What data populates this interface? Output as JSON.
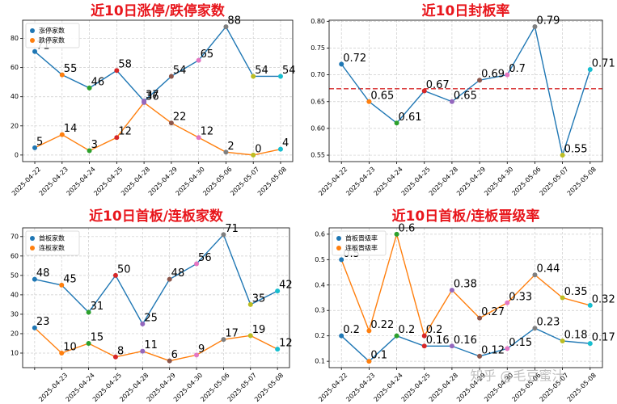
{
  "chart_data": [
    {
      "type": "line",
      "title": "近10日涨停/跌停家数",
      "categories": [
        "2025-04-22",
        "2025-04-23",
        "2025-04-24",
        "2025-04-25",
        "2025-04-28",
        "2025-04-29",
        "2025-04-30",
        "2025-05-06",
        "2025-05-07",
        "2025-05-08"
      ],
      "series": [
        {
          "name": "涨停家数",
          "color": "#1f77b4",
          "values": [
            71,
            55,
            46,
            58,
            37,
            54,
            65,
            88,
            54,
            54
          ]
        },
        {
          "name": "跌停家数",
          "color": "#ff7f0e",
          "values": [
            5,
            14,
            3,
            12,
            36,
            22,
            12,
            2,
            0,
            4
          ]
        }
      ],
      "ylim": [
        -4.5,
        92.5
      ],
      "yticks": [
        0,
        20,
        40,
        60,
        80
      ],
      "grid": true,
      "legend": "upper left"
    },
    {
      "type": "line",
      "title": "近10日封板率",
      "categories": [
        "2025-04-22",
        "2025-04-23",
        "2025-04-24",
        "2025-04-25",
        "2025-04-28",
        "2025-04-29",
        "2025-04-30",
        "2025-05-06",
        "2025-05-07",
        "2025-05-08"
      ],
      "values": [
        0.72,
        0.65,
        0.61,
        0.67,
        0.65,
        0.69,
        0.7,
        0.79,
        0.55,
        0.71
      ],
      "color": "#1f77b4",
      "mean_line": {
        "value": 0.674,
        "color": "#d62728"
      },
      "ylim": [
        0.538,
        0.802
      ],
      "yticks": [
        0.55,
        {
          "value": 0.6,
          "label": "0.60"
        },
        0.65,
        {
          "value": 0.7,
          "label": "0.70"
        },
        0.75,
        {
          "value": 0.8,
          "label": "0.80"
        }
      ],
      "grid": true
    },
    {
      "type": "line",
      "title": "近10日首板/连板家数",
      "categories": [
        null,
        "2025-04-23",
        "2025-04-24",
        "2025-04-25",
        "2025-04-28",
        "2025-04-29",
        "2025-04-30",
        "2025-05-06",
        "2025-05-07",
        "2025-05-08"
      ],
      "series": [
        {
          "name": "首板家数",
          "color": "#1f77b4",
          "values": [
            48,
            45,
            31,
            50,
            25,
            48,
            56,
            71,
            35,
            42
          ]
        },
        {
          "name": "连板家数",
          "color": "#ff7f0e",
          "values": [
            23,
            10,
            15,
            8,
            11,
            6,
            9,
            17,
            19,
            12
          ]
        }
      ],
      "ylim": [
        2.5,
        74.5
      ],
      "yticks": [
        10,
        20,
        30,
        40,
        50,
        60,
        70
      ],
      "grid": true,
      "legend": "upper left"
    },
    {
      "type": "line",
      "title": "近10日首板/连板晋级率",
      "categories": [
        "2025-04-22",
        "2025-04-23",
        "2025-04-24",
        "2025-04-25",
        "2025-04-28",
        "2025-04-29",
        "2025-04-30",
        "2025-05-06",
        "2025-05-07",
        "2025-05-08"
      ],
      "series": [
        {
          "name": "首板晋级率",
          "color": "#1f77b4",
          "values": [
            0.2,
            0.1,
            0.2,
            0.16,
            0.16,
            0.12,
            0.15,
            0.23,
            0.18,
            0.17
          ]
        },
        {
          "name": "连板晋级率",
          "color": "#ff7f0e",
          "values": [
            0.5,
            0.22,
            0.6,
            0.2,
            0.38,
            0.27,
            0.33,
            0.44,
            0.35,
            0.32
          ]
        }
      ],
      "ylim": [
        0.075,
        0.625
      ],
      "yticks": [
        0.1,
        0.2,
        0.3,
        0.4,
        0.5,
        0.6
      ],
      "grid": true,
      "legend": "upper left"
    }
  ],
  "point_colors": [
    "#1f77b4",
    "#ff7f0e",
    "#2ca02c",
    "#d62728",
    "#9467bd",
    "#8c564b",
    "#e377c2",
    "#7f7f7f",
    "#bcbd22",
    "#17becf"
  ],
  "watermark": "知乎 @毛豆蜜汁"
}
